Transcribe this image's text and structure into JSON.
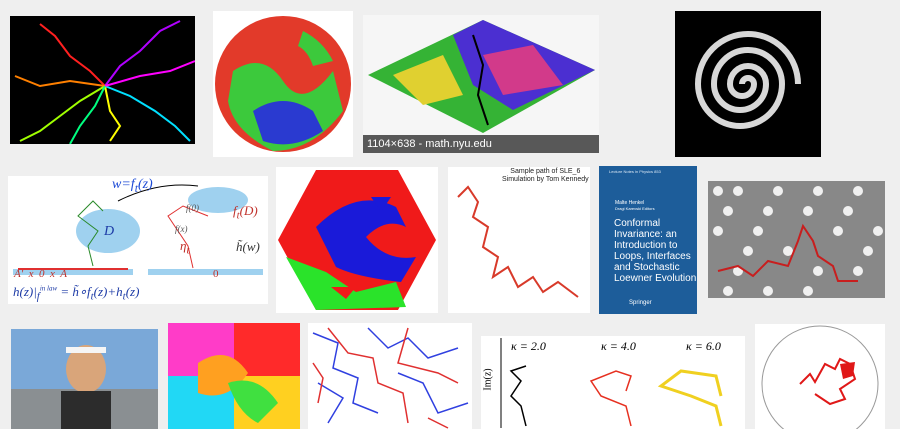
{
  "results": [
    {
      "id": "r1",
      "alt": "colored random curves on black",
      "caption": ""
    },
    {
      "id": "r2",
      "alt": "hexagonal percolation disc",
      "caption": ""
    },
    {
      "id": "r3",
      "alt": "rhombus percolation cluster",
      "caption": "1104×638 - math.nyu.edu"
    },
    {
      "id": "r4",
      "alt": "spiral on black",
      "caption": ""
    },
    {
      "id": "r5",
      "alt": "conformal map diagram",
      "caption": ""
    },
    {
      "id": "r6",
      "alt": "large hexagon percolation",
      "caption": ""
    },
    {
      "id": "r7",
      "alt": "SLE_6 sample path",
      "caption": ""
    },
    {
      "id": "r8",
      "alt": "book cover",
      "caption": ""
    },
    {
      "id": "r9",
      "alt": "grey hex grid with red path",
      "caption": ""
    },
    {
      "id": "r10",
      "alt": "person portrait",
      "caption": ""
    },
    {
      "id": "r11",
      "alt": "colorful regions",
      "caption": ""
    },
    {
      "id": "r12",
      "alt": "red blue lattice loops",
      "caption": ""
    },
    {
      "id": "r13",
      "alt": "kappa curves plot",
      "caption": ""
    },
    {
      "id": "r14",
      "alt": "red path in circle",
      "caption": ""
    }
  ],
  "diagram": {
    "w_eq": "w=f",
    "w_sub": "t",
    "w_arg": "(z)",
    "f_label": "f",
    "f_sub": "t",
    "f_arg": "(D)",
    "D": "D",
    "eta": "η",
    "eta_sub": "t",
    "hw": "h̃(w)",
    "ft0": "f",
    "ft0_tail": "(0)",
    "ftx": "f",
    "ftx_tail": "(x)",
    "axis_left": "A′  x  0  x  A",
    "axis_right": "0",
    "formula": "h(z)|",
    "formula_sub": "f",
    "formula_over": "in law",
    "formula_rest": " = h̃∘f",
    "formula_end": "(z)+h",
    "formula_tail": "(z)"
  },
  "sle": {
    "line1": "Sample path of SLE_6",
    "line2": "Simulation by Tom Kennedy"
  },
  "book": {
    "series": "Lecture Notes in Physics 853",
    "editors_1": "Malte Henkel",
    "editors_2": "Dragi Karevski  Editors",
    "title": "Conformal Invariance: an Introduction to Loops, Interfaces and Stochastic Loewner Evolution",
    "title_l1": "Conformal",
    "title_l2": "Invariance: an",
    "title_l3": "Introduction to",
    "title_l4": "Loops, Interfaces",
    "title_l5": "and Stochastic",
    "title_l6": "Loewner Evolution",
    "publisher": "Springer"
  },
  "kappa": {
    "ylabel": "Im(z)",
    "k1": "κ = 2.0",
    "k2": "κ = 4.0",
    "k3": "κ = 6.0"
  }
}
